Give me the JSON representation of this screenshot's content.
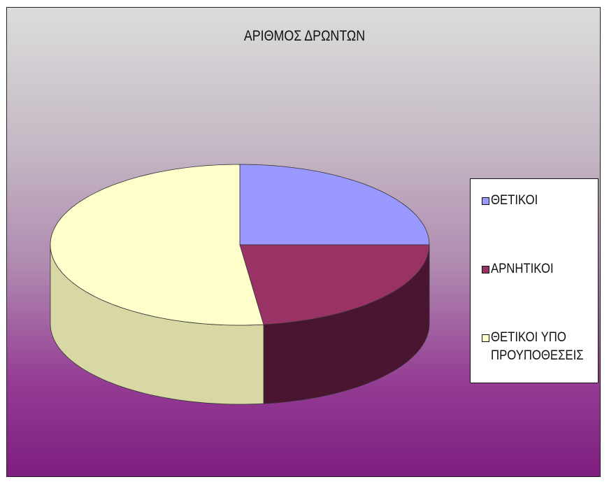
{
  "chart_data": {
    "type": "pie",
    "title": "ΑΡΙΘΜΟΣ ΔΡΩΝΤΩΝ",
    "categories": [
      "ΘΕΤΙΚΟΙ",
      "ΑΡΝΗΤΙΚΟΙ",
      "ΘΕΤΙΚΟΙ ΥΠΟ ΠΡΟΥΠΟΘΕΣΕΙΣ"
    ],
    "values": [
      25,
      23,
      52
    ],
    "colors": [
      "#9999ff",
      "#993366",
      "#ffffcc"
    ],
    "side_colors": [
      "#6666b0",
      "#4a1530",
      "#d8d8a4"
    ],
    "legend": "right"
  }
}
